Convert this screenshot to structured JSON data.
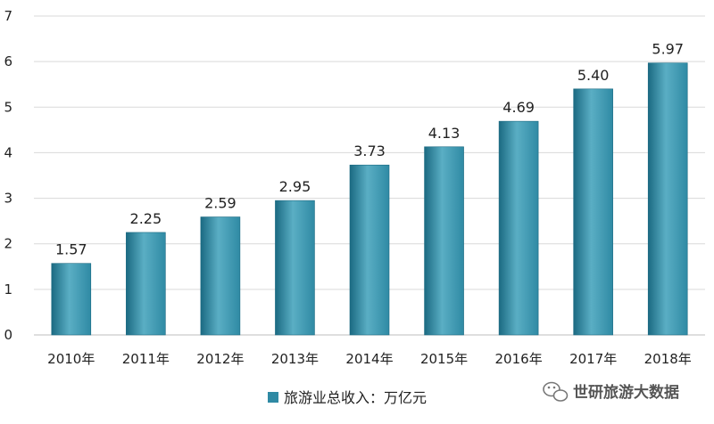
{
  "chart_data": {
    "type": "bar",
    "categories": [
      "2010年",
      "2011年",
      "2012年",
      "2013年",
      "2014年",
      "2015年",
      "2016年",
      "2017年",
      "2018年"
    ],
    "series": [
      {
        "name": "旅游业总收入：万亿元",
        "values": [
          1.57,
          2.25,
          2.59,
          2.95,
          3.73,
          4.13,
          4.69,
          5.4,
          5.97
        ],
        "labels": [
          "1.57",
          "2.25",
          "2.59",
          "2.95",
          "3.73",
          "4.13",
          "4.69",
          "5.40",
          "5.97"
        ]
      }
    ],
    "ylim": [
      0,
      7
    ],
    "yticks": [
      "0",
      "1",
      "2",
      "3",
      "4",
      "5",
      "6",
      "7"
    ],
    "grid": true,
    "legend_position": "bottom-center",
    "bar_color": "#2f8aa4",
    "bar_color_dark": "#1b6a82",
    "bar_color_light": "#5aaec4"
  },
  "watermark": {
    "text": "世研旅游大数据",
    "icon": "wechat-icon"
  }
}
